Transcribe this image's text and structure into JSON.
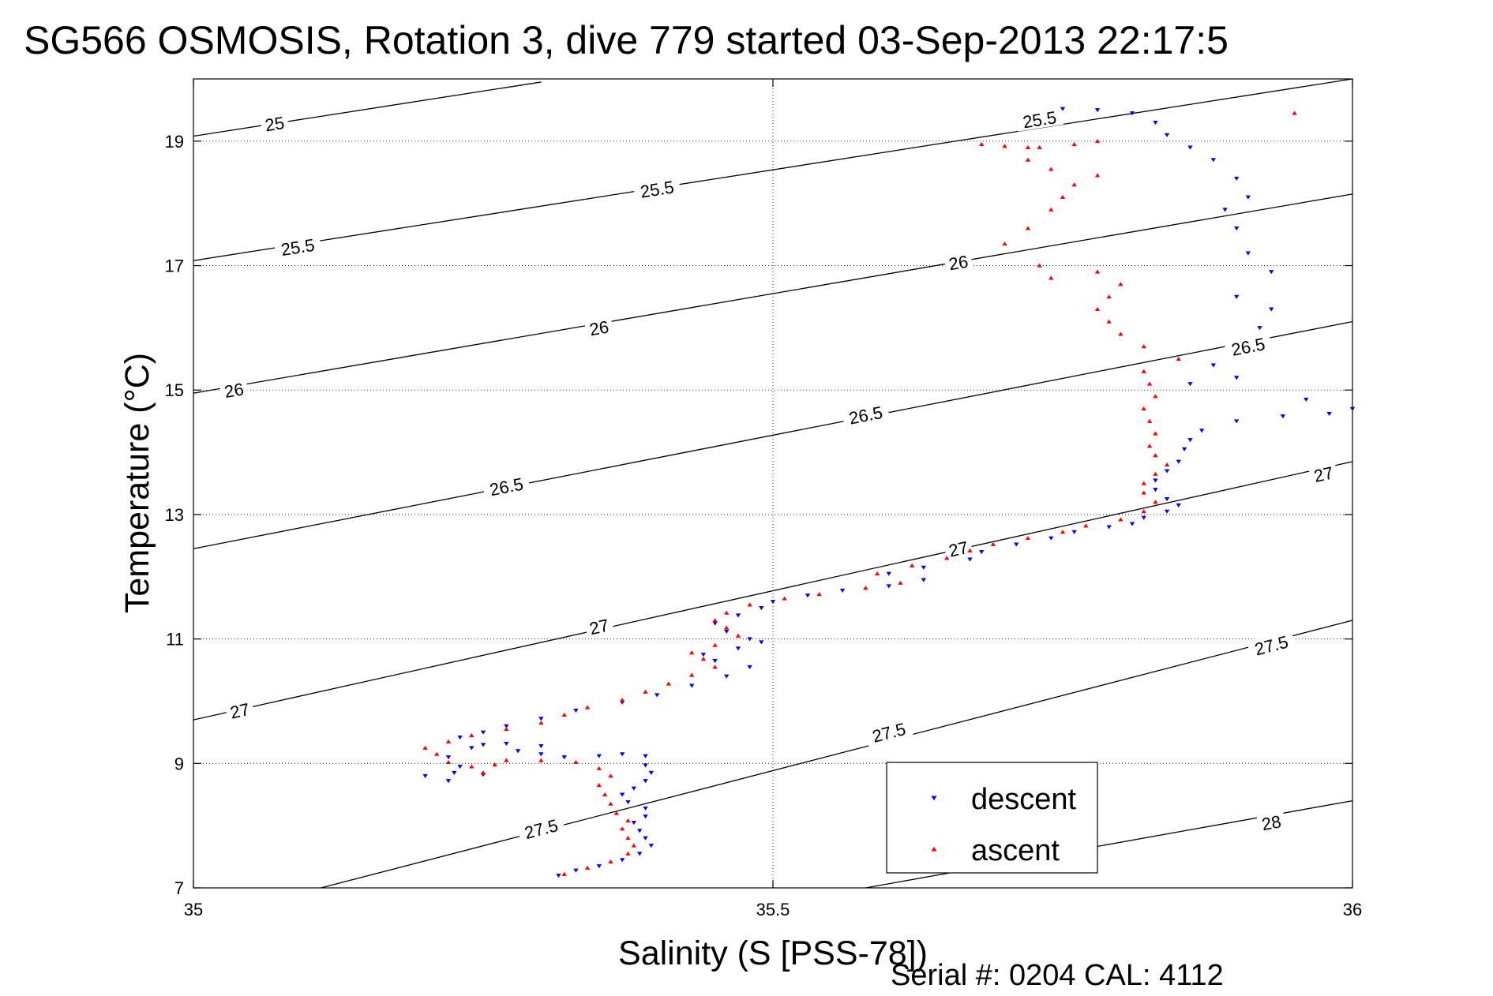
{
  "chart_data": {
    "type": "scatter",
    "title": "SG566 OSMOSIS, Rotation 3, dive 779 started 03-Sep-2013 22:17:5",
    "xlabel": "Salinity (S [PSS-78])",
    "ylabel": "Temperature (°C)",
    "xlim": [
      35,
      36
    ],
    "ylim": [
      7,
      20
    ],
    "xticks": [
      {
        "value": 35,
        "label": "35"
      },
      {
        "value": 35.5,
        "label": "35.5"
      },
      {
        "value": 36,
        "label": "36"
      }
    ],
    "yticks": [
      {
        "value": 7,
        "label": "7"
      },
      {
        "value": 9,
        "label": "9"
      },
      {
        "value": 11,
        "label": "11"
      },
      {
        "value": 13,
        "label": "13"
      },
      {
        "value": 15,
        "label": "15"
      },
      {
        "value": 17,
        "label": "17"
      },
      {
        "value": 19,
        "label": "19"
      }
    ],
    "grid": true,
    "legend_position": "bottom-right",
    "footer": "Serial #: 0204  CAL: 4112",
    "density_contours": [
      {
        "label": "25",
        "start": [
          35.0,
          19.08
        ],
        "end": [
          35.3,
          19.95
        ],
        "label_at": [
          35.07,
          19.28
        ]
      },
      {
        "label": "25.5",
        "start": [
          35.0,
          17.08
        ],
        "end": [
          36.0,
          20.0
        ],
        "label_at": [
          35.4,
          18.23
        ]
      },
      {
        "label": "25.5",
        "start": [
          35.0,
          17.08
        ],
        "end": [
          36.0,
          20.0
        ],
        "label_at": [
          35.09,
          17.3
        ]
      },
      {
        "label": "25.5",
        "start": [
          35.0,
          17.08
        ],
        "end": [
          36.0,
          20.0
        ],
        "label_at": [
          35.73,
          19.35
        ]
      },
      {
        "label": "26",
        "start": [
          35.0,
          14.95
        ],
        "end": [
          36.0,
          18.15
        ],
        "label_at": [
          35.35,
          16.0
        ]
      },
      {
        "label": "26",
        "start": [
          35.0,
          14.95
        ],
        "end": [
          36.0,
          18.15
        ],
        "label_at": [
          35.035,
          15.0
        ]
      },
      {
        "label": "26",
        "start": [
          35.0,
          14.95
        ],
        "end": [
          36.0,
          18.15
        ],
        "label_at": [
          35.66,
          17.05
        ]
      },
      {
        "label": "26.5",
        "start": [
          35.0,
          12.45
        ],
        "end": [
          36.0,
          16.1
        ],
        "label_at": [
          35.58,
          14.6
        ]
      },
      {
        "label": "26.5",
        "start": [
          35.0,
          12.45
        ],
        "end": [
          36.0,
          16.1
        ],
        "label_at": [
          35.27,
          13.45
        ]
      },
      {
        "label": "26.5",
        "start": [
          35.0,
          12.45
        ],
        "end": [
          36.0,
          16.1
        ],
        "label_at": [
          35.91,
          15.7
        ]
      },
      {
        "label": "27",
        "start": [
          35.0,
          9.7
        ],
        "end": [
          36.0,
          13.85
        ],
        "label_at": [
          35.35,
          11.2
        ]
      },
      {
        "label": "27",
        "start": [
          35.0,
          9.7
        ],
        "end": [
          36.0,
          13.85
        ],
        "label_at": [
          35.04,
          9.85
        ]
      },
      {
        "label": "27",
        "start": [
          35.0,
          9.7
        ],
        "end": [
          36.0,
          13.85
        ],
        "label_at": [
          35.66,
          12.45
        ]
      },
      {
        "label": "27",
        "start": [
          35.0,
          9.7
        ],
        "end": [
          36.0,
          13.85
        ],
        "label_at": [
          35.975,
          13.65
        ]
      },
      {
        "label": "27.5",
        "start": [
          35.11,
          7.0
        ],
        "end": [
          36.0,
          11.3
        ],
        "label_at": [
          35.3,
          7.95
        ]
      },
      {
        "label": "27.5",
        "start": [
          35.11,
          7.0
        ],
        "end": [
          36.0,
          11.3
        ],
        "label_at": [
          35.6,
          9.5
        ]
      },
      {
        "label": "27.5",
        "start": [
          35.11,
          7.0
        ],
        "end": [
          36.0,
          11.3
        ],
        "label_at": [
          35.93,
          10.9
        ]
      },
      {
        "label": "28",
        "start": [
          35.58,
          7.0
        ],
        "end": [
          36.0,
          8.4
        ],
        "label_at": [
          35.93,
          8.05
        ]
      }
    ],
    "series": [
      {
        "name": "descent",
        "color": "#0000ff",
        "marker": "triangle-down",
        "points": [
          [
            35.315,
            7.2
          ],
          [
            35.33,
            7.28
          ],
          [
            35.35,
            7.35
          ],
          [
            35.37,
            7.45
          ],
          [
            35.385,
            7.55
          ],
          [
            35.395,
            7.68
          ],
          [
            35.39,
            7.8
          ],
          [
            35.385,
            7.92
          ],
          [
            35.38,
            8.05
          ],
          [
            35.39,
            8.15
          ],
          [
            35.39,
            8.28
          ],
          [
            35.375,
            8.38
          ],
          [
            35.37,
            8.5
          ],
          [
            35.38,
            8.6
          ],
          [
            35.39,
            8.72
          ],
          [
            35.395,
            8.85
          ],
          [
            35.39,
            8.97
          ],
          [
            35.39,
            9.12
          ],
          [
            35.37,
            9.15
          ],
          [
            35.35,
            9.12
          ],
          [
            35.32,
            9.1
          ],
          [
            35.3,
            9.15
          ],
          [
            35.28,
            9.2
          ],
          [
            35.3,
            9.28
          ],
          [
            35.27,
            9.32
          ],
          [
            35.25,
            9.3
          ],
          [
            35.24,
            9.25
          ],
          [
            35.22,
            9.1
          ],
          [
            35.23,
            8.95
          ],
          [
            35.225,
            8.85
          ],
          [
            35.2,
            8.8
          ],
          [
            35.22,
            8.72
          ],
          [
            35.25,
            8.82
          ],
          [
            35.23,
            9.42
          ],
          [
            35.25,
            9.5
          ],
          [
            35.27,
            9.6
          ],
          [
            35.3,
            9.72
          ],
          [
            35.33,
            9.85
          ],
          [
            35.37,
            9.98
          ],
          [
            35.4,
            10.1
          ],
          [
            35.43,
            10.25
          ],
          [
            35.46,
            10.4
          ],
          [
            35.48,
            10.55
          ],
          [
            35.45,
            10.65
          ],
          [
            35.44,
            10.75
          ],
          [
            35.47,
            10.85
          ],
          [
            35.49,
            10.95
          ],
          [
            35.48,
            11.0
          ],
          [
            35.46,
            11.12
          ],
          [
            35.45,
            11.25
          ],
          [
            35.47,
            11.38
          ],
          [
            35.49,
            11.5
          ],
          [
            35.5,
            11.6
          ],
          [
            35.53,
            11.7
          ],
          [
            35.56,
            11.78
          ],
          [
            35.6,
            11.85
          ],
          [
            35.63,
            11.95
          ],
          [
            35.6,
            12.05
          ],
          [
            35.63,
            12.15
          ],
          [
            35.67,
            12.28
          ],
          [
            35.68,
            12.4
          ],
          [
            35.71,
            12.52
          ],
          [
            35.74,
            12.62
          ],
          [
            35.76,
            12.72
          ],
          [
            35.79,
            12.8
          ],
          [
            35.81,
            12.85
          ],
          [
            35.82,
            12.95
          ],
          [
            35.84,
            13.05
          ],
          [
            35.85,
            13.15
          ],
          [
            35.84,
            13.25
          ],
          [
            35.83,
            13.4
          ],
          [
            35.83,
            13.55
          ],
          [
            35.84,
            13.7
          ],
          [
            35.85,
            13.85
          ],
          [
            35.855,
            14.05
          ],
          [
            35.86,
            14.2
          ],
          [
            35.87,
            14.35
          ],
          [
            35.9,
            14.5
          ],
          [
            35.94,
            14.58
          ],
          [
            35.98,
            14.62
          ],
          [
            36.0,
            14.7
          ],
          [
            35.96,
            14.85
          ],
          [
            35.9,
            15.2
          ],
          [
            35.88,
            15.4
          ],
          [
            35.86,
            15.1
          ],
          [
            35.92,
            16.0
          ],
          [
            35.93,
            16.3
          ],
          [
            35.9,
            16.5
          ],
          [
            35.93,
            16.9
          ],
          [
            35.91,
            17.2
          ],
          [
            35.9,
            17.6
          ],
          [
            35.89,
            17.9
          ],
          [
            35.91,
            18.1
          ],
          [
            35.9,
            18.4
          ],
          [
            35.88,
            18.7
          ],
          [
            35.86,
            18.9
          ],
          [
            35.84,
            19.1
          ],
          [
            35.83,
            19.3
          ],
          [
            35.81,
            19.45
          ],
          [
            35.78,
            19.5
          ],
          [
            35.75,
            19.52
          ]
        ]
      },
      {
        "name": "ascent",
        "color": "#ff0000",
        "marker": "triangle-up",
        "points": [
          [
            35.32,
            7.22
          ],
          [
            35.34,
            7.32
          ],
          [
            35.36,
            7.42
          ],
          [
            35.375,
            7.55
          ],
          [
            35.38,
            7.68
          ],
          [
            35.375,
            7.8
          ],
          [
            35.37,
            7.95
          ],
          [
            35.375,
            8.08
          ],
          [
            35.365,
            8.2
          ],
          [
            35.36,
            8.35
          ],
          [
            35.355,
            8.5
          ],
          [
            35.35,
            8.65
          ],
          [
            35.36,
            8.8
          ],
          [
            35.35,
            8.92
          ],
          [
            35.33,
            9.02
          ],
          [
            35.3,
            9.05
          ],
          [
            35.27,
            9.05
          ],
          [
            35.26,
            8.98
          ],
          [
            35.25,
            8.85
          ],
          [
            35.24,
            8.95
          ],
          [
            35.22,
            9.02
          ],
          [
            35.21,
            9.15
          ],
          [
            35.2,
            9.25
          ],
          [
            35.22,
            9.35
          ],
          [
            35.24,
            9.45
          ],
          [
            35.27,
            9.55
          ],
          [
            35.3,
            9.65
          ],
          [
            35.32,
            9.78
          ],
          [
            35.34,
            9.9
          ],
          [
            35.37,
            10.02
          ],
          [
            35.39,
            10.15
          ],
          [
            35.41,
            10.28
          ],
          [
            35.43,
            10.42
          ],
          [
            35.45,
            10.55
          ],
          [
            35.44,
            10.68
          ],
          [
            35.43,
            10.78
          ],
          [
            35.45,
            10.9
          ],
          [
            35.47,
            11.05
          ],
          [
            35.46,
            11.18
          ],
          [
            35.45,
            11.3
          ],
          [
            35.46,
            11.42
          ],
          [
            35.48,
            11.55
          ],
          [
            35.51,
            11.65
          ],
          [
            35.54,
            11.72
          ],
          [
            35.58,
            11.82
          ],
          [
            35.61,
            11.9
          ],
          [
            35.59,
            12.05
          ],
          [
            35.62,
            12.18
          ],
          [
            35.65,
            12.3
          ],
          [
            35.67,
            12.42
          ],
          [
            35.69,
            12.52
          ],
          [
            35.72,
            12.62
          ],
          [
            35.75,
            12.72
          ],
          [
            35.77,
            12.82
          ],
          [
            35.8,
            12.92
          ],
          [
            35.82,
            13.05
          ],
          [
            35.83,
            13.2
          ],
          [
            35.82,
            13.35
          ],
          [
            35.82,
            13.5
          ],
          [
            35.83,
            13.65
          ],
          [
            35.84,
            13.8
          ],
          [
            35.83,
            13.95
          ],
          [
            35.825,
            14.1
          ],
          [
            35.83,
            14.3
          ],
          [
            35.825,
            14.5
          ],
          [
            35.82,
            14.7
          ],
          [
            35.83,
            14.9
          ],
          [
            35.825,
            15.1
          ],
          [
            35.82,
            15.3
          ],
          [
            35.85,
            15.5
          ],
          [
            35.82,
            15.7
          ],
          [
            35.8,
            15.9
          ],
          [
            35.79,
            16.1
          ],
          [
            35.78,
            16.3
          ],
          [
            35.79,
            16.5
          ],
          [
            35.8,
            16.7
          ],
          [
            35.78,
            16.9
          ],
          [
            35.74,
            16.8
          ],
          [
            35.73,
            17.0
          ],
          [
            35.7,
            17.35
          ],
          [
            35.72,
            17.6
          ],
          [
            35.74,
            17.9
          ],
          [
            35.75,
            18.1
          ],
          [
            35.76,
            18.3
          ],
          [
            35.78,
            18.45
          ],
          [
            35.74,
            18.55
          ],
          [
            35.72,
            18.7
          ],
          [
            35.73,
            18.9
          ],
          [
            35.76,
            18.95
          ],
          [
            35.78,
            19.0
          ],
          [
            35.68,
            18.95
          ],
          [
            35.7,
            18.92
          ],
          [
            35.72,
            18.9
          ],
          [
            35.95,
            19.45
          ]
        ]
      }
    ]
  }
}
